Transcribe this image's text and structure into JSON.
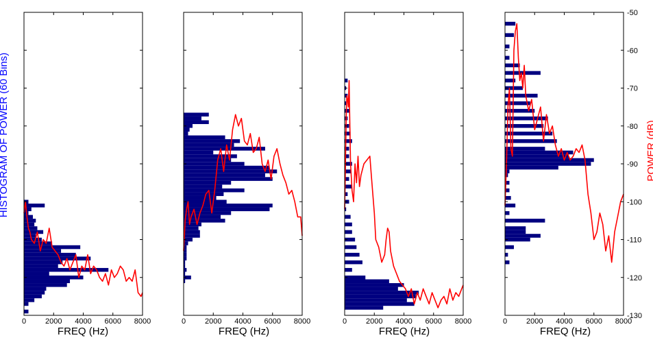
{
  "chart_data": {
    "type": "bar",
    "shared": {
      "left_ylabel": "HISTOGRAM OF POWER (60 Bins)",
      "right_ylabel": "POWER (dB)",
      "xlabel": "FREQ (Hz)",
      "xlim": [
        0,
        8000
      ],
      "xticks": [
        0,
        2000,
        4000,
        6000,
        8000
      ],
      "xtick_labels": [
        "0",
        "2000",
        "4000",
        "6000",
        "8000"
      ],
      "ylim": [
        -130,
        -50
      ],
      "yticks": [
        -50,
        -60,
        -70,
        -80,
        -90,
        -100,
        -110,
        -120,
        -130
      ],
      "ytick_labels": [
        "-50",
        "-60",
        "-70",
        "-80",
        "-90",
        "-100",
        "-110",
        "-120",
        "-130"
      ],
      "histogram_color": "#000080",
      "power_line_color": "#ff0000",
      "grid": false
    },
    "panels": [
      {
        "histogram": {
          "bin_centers_db": [
            -100,
            -101,
            -102,
            -103,
            -104,
            -105,
            -106,
            -107,
            -108,
            -109,
            -110,
            -111,
            -112,
            -113,
            -114,
            -115,
            -116,
            -117,
            -118,
            -119,
            -120,
            -121,
            -122,
            -123,
            -124,
            -125,
            -126,
            -127,
            -129
          ],
          "bar_lengths_hz": [
            300,
            1400,
            500,
            300,
            600,
            800,
            700,
            900,
            1300,
            800,
            1200,
            1900,
            3800,
            2500,
            3500,
            4500,
            2600,
            2300,
            5700,
            1700,
            4000,
            3100,
            2900,
            1500,
            1400,
            1200,
            700,
            300,
            300
          ]
        },
        "power": {
          "freq": [
            0,
            100,
            200,
            300,
            400,
            500,
            700,
            900,
            1100,
            1300,
            1500,
            1700,
            1900,
            2100,
            2300,
            2500,
            2700,
            2900,
            3100,
            3300,
            3500,
            3700,
            3900,
            4100,
            4300,
            4500,
            4700,
            4900,
            5100,
            5300,
            5500,
            5700,
            5900,
            6100,
            6300,
            6500,
            6700,
            6900,
            7100,
            7300,
            7500,
            7700,
            7900,
            8000
          ],
          "db": [
            -103,
            -100,
            -104,
            -107,
            -108,
            -110,
            -111,
            -108,
            -113,
            -110,
            -111,
            -107,
            -112,
            -113,
            -114,
            -116,
            -117,
            -115,
            -118,
            -116,
            -114,
            -120,
            -117,
            -118,
            -114,
            -119,
            -117,
            -118,
            -120,
            -121,
            -119,
            -122,
            -118,
            -120,
            -119,
            -117,
            -118,
            -121,
            -120,
            -121,
            -118,
            -124,
            -125,
            -124
          ]
        }
      },
      {
        "histogram": {
          "bin_centers_db": [
            -77,
            -78,
            -79,
            -80,
            -81,
            -82,
            -83,
            -84,
            -85,
            -86,
            -87,
            -88,
            -89,
            -90,
            -91,
            -92,
            -93,
            -94,
            -95,
            -96,
            -97,
            -98,
            -99,
            -100,
            -101,
            -102,
            -103,
            -104,
            -105,
            -106,
            -107,
            -108,
            -109,
            -110,
            -111,
            -112,
            -113,
            -114,
            -115,
            -116,
            -117,
            -118,
            -119,
            -120,
            -121
          ],
          "bar_lengths_hz": [
            1700,
            1200,
            1700,
            600,
            400,
            300,
            2800,
            3800,
            3400,
            5500,
            2000,
            3600,
            3200,
            4100,
            5800,
            6300,
            5500,
            6000,
            3200,
            2600,
            4100,
            2700,
            2200,
            2900,
            6000,
            5800,
            3200,
            2500,
            2800,
            1200,
            1000,
            1100,
            1100,
            600,
            300,
            200,
            200,
            200,
            200,
            100,
            100,
            200,
            100,
            500,
            100
          ]
        },
        "power": {
          "freq": [
            0,
            100,
            200,
            300,
            400,
            500,
            700,
            900,
            1100,
            1300,
            1500,
            1700,
            1900,
            2100,
            2300,
            2500,
            2700,
            2900,
            3100,
            3300,
            3500,
            3700,
            3900,
            4100,
            4300,
            4500,
            4700,
            4900,
            5100,
            5300,
            5500,
            5700,
            5900,
            6100,
            6300,
            6500,
            6700,
            6900,
            7100,
            7300,
            7500,
            7700,
            7900,
            8000
          ],
          "db": [
            -113,
            -105,
            -102,
            -100,
            -106,
            -104,
            -102,
            -106,
            -103,
            -101,
            -98,
            -97,
            -103,
            -97,
            -89,
            -86,
            -92,
            -85,
            -89,
            -81,
            -77,
            -80,
            -78,
            -84,
            -85,
            -82,
            -87,
            -86,
            -83,
            -90,
            -92,
            -89,
            -94,
            -88,
            -86,
            -90,
            -93,
            -95,
            -98,
            -97,
            -100,
            -104,
            -104,
            -109
          ]
        }
      },
      {
        "histogram": {
          "bin_centers_db": [
            -68,
            -70,
            -72,
            -74,
            -76,
            -78,
            -80,
            -82,
            -84,
            -86,
            -88,
            -90,
            -92,
            -94,
            -96,
            -98,
            -100,
            -102,
            -104,
            -106,
            -108,
            -110,
            -112,
            -114,
            -116,
            -118,
            -120,
            -121,
            -122,
            -123,
            -124,
            -125,
            -126,
            -127,
            -128
          ],
          "bar_lengths_hz": [
            200,
            100,
            200,
            100,
            300,
            200,
            300,
            400,
            500,
            300,
            300,
            500,
            400,
            300,
            500,
            200,
            300,
            100,
            400,
            500,
            500,
            700,
            800,
            1000,
            1200,
            500,
            1400,
            3000,
            4000,
            3600,
            5000,
            4800,
            4200,
            4700,
            2600
          ]
        },
        "power": {
          "freq": [
            0,
            50,
            100,
            150,
            200,
            250,
            300,
            350,
            400,
            500,
            600,
            700,
            800,
            900,
            1000,
            1100,
            1300,
            1500,
            1700,
            1800,
            1900,
            2000,
            2100,
            2300,
            2500,
            2700,
            2800,
            2900,
            3000,
            3100,
            3300,
            3500,
            3700,
            3900,
            4100,
            4300,
            4500,
            4700,
            4900,
            5100,
            5300,
            5500,
            5700,
            5900,
            6100,
            6300,
            6500,
            6700,
            6900,
            7100,
            7300,
            7500,
            7700,
            7900,
            8000
          ],
          "db": [
            -102,
            -91,
            -78,
            -72,
            -73,
            -75,
            -68,
            -80,
            -90,
            -97,
            -100,
            -90,
            -95,
            -88,
            -96,
            -93,
            -90,
            -89,
            -88,
            -93,
            -98,
            -103,
            -110,
            -112,
            -116,
            -114,
            -110,
            -107,
            -108,
            -113,
            -117,
            -119,
            -121,
            -122,
            -123,
            -125,
            -123,
            -127,
            -124,
            -126,
            -123,
            -125,
            -127,
            -124,
            -126,
            -128,
            -126,
            -125,
            -127,
            -123,
            -126,
            -124,
            -125,
            -123,
            -122
          ]
        }
      },
      {
        "histogram": {
          "bin_centers_db": [
            -53,
            -56,
            -59,
            -62,
            -64,
            -66,
            -68,
            -70,
            -72,
            -74,
            -76,
            -78,
            -80,
            -82,
            -84,
            -86,
            -87,
            -88,
            -89,
            -90,
            -91,
            -92,
            -93,
            -95,
            -97,
            -99,
            -101,
            -103,
            -105,
            -107,
            -108,
            -109,
            -110,
            -112,
            -114,
            -116
          ],
          "bar_lengths_hz": [
            700,
            600,
            300,
            300,
            1000,
            2400,
            700,
            1200,
            2200,
            1700,
            2000,
            2900,
            2600,
            3200,
            3500,
            2700,
            4600,
            4300,
            6000,
            5800,
            3600,
            300,
            200,
            300,
            300,
            400,
            700,
            300,
            2700,
            1400,
            1400,
            2400,
            1700,
            600,
            200,
            300
          ]
        },
        "power": {
          "freq": [
            0,
            100,
            200,
            300,
            400,
            500,
            600,
            700,
            800,
            900,
            1000,
            1100,
            1200,
            1300,
            1400,
            1600,
            1800,
            2000,
            2200,
            2400,
            2600,
            2800,
            3000,
            3200,
            3400,
            3600,
            3800,
            4000,
            4200,
            4400,
            4600,
            4800,
            5000,
            5200,
            5400,
            5600,
            5800,
            6000,
            6200,
            6400,
            6600,
            6800,
            7000,
            7200,
            7400,
            7600,
            7800,
            8000
          ],
          "db": [
            -101,
            -90,
            -75,
            -70,
            -86,
            -88,
            -60,
            -55,
            -53,
            -62,
            -68,
            -66,
            -70,
            -64,
            -72,
            -76,
            -73,
            -81,
            -78,
            -75,
            -84,
            -77,
            -82,
            -80,
            -85,
            -88,
            -86,
            -89,
            -87,
            -89,
            -88,
            -86,
            -87,
            -85,
            -89,
            -98,
            -103,
            -110,
            -108,
            -103,
            -106,
            -113,
            -109,
            -116,
            -108,
            -104,
            -100,
            -98
          ]
        }
      }
    ]
  }
}
